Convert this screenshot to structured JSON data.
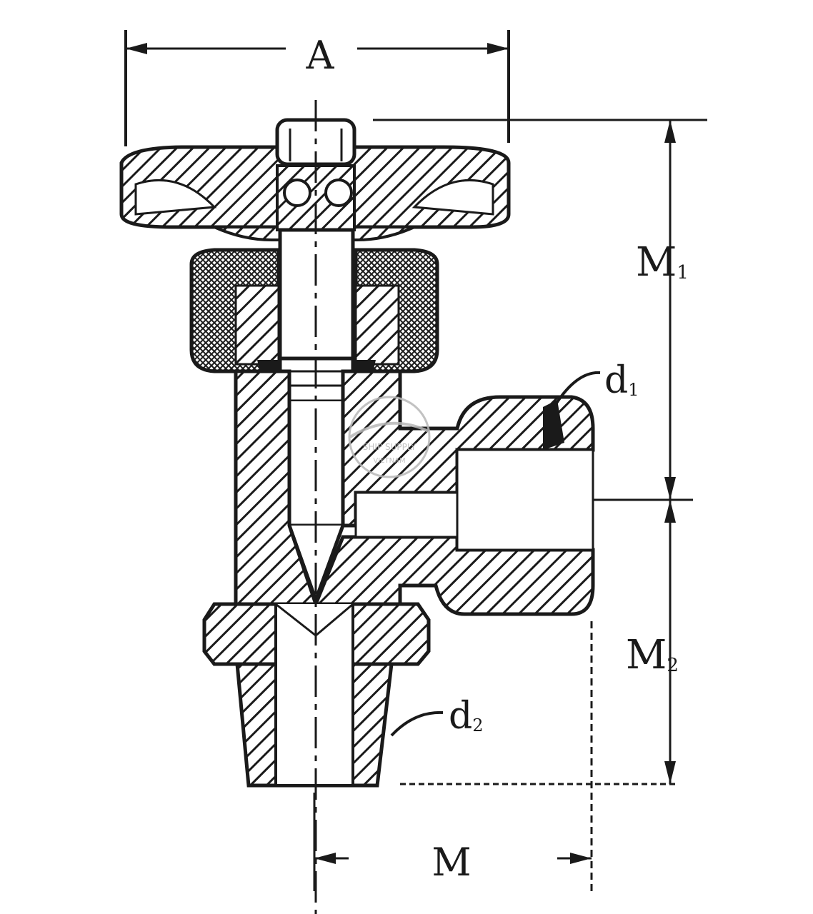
{
  "labels": {
    "A": "A",
    "M1_main": "M",
    "M1_sub": "1",
    "M2_main": "M",
    "M2_sub": "2",
    "d1_main": "d",
    "d1_sub": "1",
    "d2_main": "d",
    "d2_sub": "2",
    "M": "M"
  },
  "watermark": {
    "line1": "SHIP SUPPLY",
    "line2": "VIETNAM"
  },
  "colors": {
    "ink": "#1a1a1a",
    "paper": "#ffffff",
    "watermark": "#b8b8b8"
  }
}
